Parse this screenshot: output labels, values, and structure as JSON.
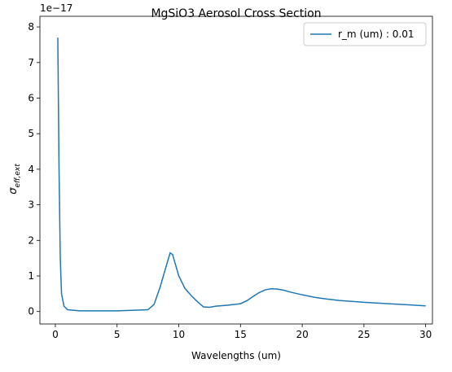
{
  "chart_data": {
    "type": "line",
    "title": "MgSiO3 Aerosol Cross Section",
    "x_label": "Wavelengths (um)",
    "y_label_symbol": "σ",
    "y_label_subscript": "eff,ext",
    "y_offset_label": "1e−17",
    "x": [
      0.2,
      0.3,
      0.4,
      0.5,
      0.7,
      1,
      2,
      5,
      7.5,
      8,
      8.5,
      9,
      9.3,
      9.5,
      10,
      10.5,
      11,
      11.5,
      12,
      12.5,
      13,
      14,
      15,
      15.5,
      16,
      16.5,
      17,
      17.5,
      18,
      18.5,
      19,
      20,
      21,
      22,
      23,
      25,
      27,
      30
    ],
    "series": [
      {
        "name": "r_m (um) : 0.01",
        "color": "#1f77b4",
        "values": [
          7.7,
          4,
          1.5,
          0.5,
          0.15,
          0.05,
          0.02,
          0.02,
          0.05,
          0.2,
          0.7,
          1.3,
          1.65,
          1.6,
          1.0,
          0.65,
          0.45,
          0.28,
          0.13,
          0.12,
          0.15,
          0.18,
          0.22,
          0.3,
          0.42,
          0.53,
          0.61,
          0.64,
          0.63,
          0.6,
          0.55,
          0.47,
          0.4,
          0.35,
          0.31,
          0.26,
          0.22,
          0.16
        ]
      }
    ],
    "xlim": [
      -1.25,
      30.55
    ],
    "ylim": [
      -0.35,
      8.3
    ],
    "xticks": [
      0,
      5,
      10,
      15,
      20,
      25,
      30
    ],
    "yticks": [
      0,
      1,
      2,
      3,
      4,
      5,
      6,
      7,
      8
    ],
    "legend": "upper right"
  }
}
